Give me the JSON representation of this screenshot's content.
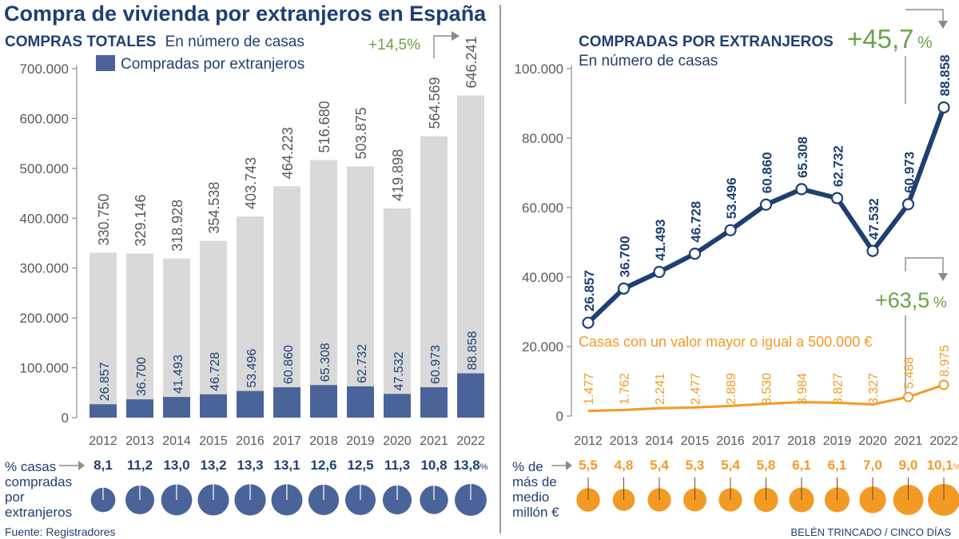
{
  "title": "Compra de vivienda por extranjeros en España",
  "source": "Fuente: Registradores",
  "credit": "BELÉN TRINCADO / CINCO DÍAS",
  "colors": {
    "navy": "#1f3f73",
    "bar_total": "#d9d9d9",
    "bar_foreign": "#4a649a",
    "orange": "#f39a24",
    "green": "#6aa34a",
    "gray_text": "#595959"
  },
  "left_panel": {
    "subtitle_bold": "COMPRAS TOTALES",
    "subtitle_rest": "En número de casas",
    "legend_label": "Compradas por extranjeros",
    "growth_label": "+14,5%",
    "pct_label": [
      "% casas",
      "compradas",
      "por",
      "extranjeros"
    ],
    "pct_values": [
      "8,1",
      "11,2",
      "13,0",
      "13,2",
      "13,3",
      "13,1",
      "12,6",
      "12,5",
      "11,3",
      "10,8",
      "13,8"
    ],
    "pct_suffix": "%"
  },
  "right_panel": {
    "subtitle_bold": "COMPRADAS POR EXTRANJEROS",
    "subtitle_rest": "En número de casas",
    "growth_main_number": "+45,7",
    "growth_main_pct": "%",
    "growth_secondary_number": "+63,5",
    "growth_secondary_pct": "%",
    "orange_series_label": "Casas con un valor mayor o igual a 500.000 €",
    "pct_label": [
      "% de",
      "más de",
      "medio",
      "millón €"
    ],
    "pct_values": [
      "5,5",
      "4,8",
      "5,4",
      "5,3",
      "5,4",
      "5,8",
      "6,1",
      "6,1",
      "7,0",
      "9,0",
      "10,1"
    ],
    "pct_suffix": "%"
  },
  "chart_data": [
    {
      "type": "bar",
      "title": "COMPRAS TOTALES",
      "subtitle": "En número de casas",
      "categories": [
        "2012",
        "2013",
        "2014",
        "2015",
        "2016",
        "2017",
        "2018",
        "2019",
        "2020",
        "2021",
        "2022"
      ],
      "ylim": [
        0,
        700000
      ],
      "yticks": [
        "0",
        "100.000",
        "200.000",
        "300.000",
        "400.000",
        "500.000",
        "600.000",
        "700.000"
      ],
      "legend": "top-left",
      "series": [
        {
          "values": [
            330750,
            329146,
            318928,
            354538,
            403743,
            464223,
            516680,
            503875,
            419898,
            564569,
            646241
          ],
          "labels": [
            "330.750",
            "329.146",
            "318.928",
            "354.538",
            "403.743",
            "464.223",
            "516.680",
            "503.875",
            "419.898",
            "564.569",
            "646.241"
          ]
        },
        {
          "name": "Compradas por extranjeros",
          "values": [
            26857,
            36700,
            41493,
            46728,
            53496,
            60860,
            65308,
            62732,
            47532,
            60973,
            88858
          ],
          "labels": [
            "26.857",
            "36.700",
            "41.493",
            "46.728",
            "53.496",
            "60.860",
            "65.308",
            "62.732",
            "47.532",
            "60.973",
            "88.858"
          ]
        }
      ]
    },
    {
      "type": "line",
      "title": "COMPRADAS POR EXTRANJEROS",
      "subtitle": "En número de casas",
      "x": [
        "2012",
        "2013",
        "2014",
        "2015",
        "2016",
        "2017",
        "2018",
        "2019",
        "2020",
        "2021",
        "2022"
      ],
      "ylim": [
        0,
        100000
      ],
      "yticks": [
        "0",
        "20.000",
        "40.000",
        "60.000",
        "80.000",
        "100.000"
      ],
      "series": [
        {
          "values": [
            26857,
            36700,
            41493,
            46728,
            53496,
            60860,
            65308,
            62732,
            47532,
            60973,
            88858
          ],
          "labels": [
            "26.857",
            "36.700",
            "41.493",
            "46.728",
            "53.496",
            "60.860",
            "65.308",
            "62.732",
            "47.532",
            "60.973",
            "88.858"
          ]
        },
        {
          "name": "Casas con un valor mayor o igual a 500.000 €",
          "values": [
            1477,
            1762,
            2241,
            2477,
            2889,
            3530,
            3984,
            3827,
            3327,
            5488,
            8975
          ],
          "labels": [
            "1.477",
            "1.762",
            "2.241",
            "2.477",
            "2.889",
            "3.530",
            "3.984",
            "3.827",
            "3.327",
            "5.488",
            "8.975"
          ]
        }
      ]
    }
  ]
}
